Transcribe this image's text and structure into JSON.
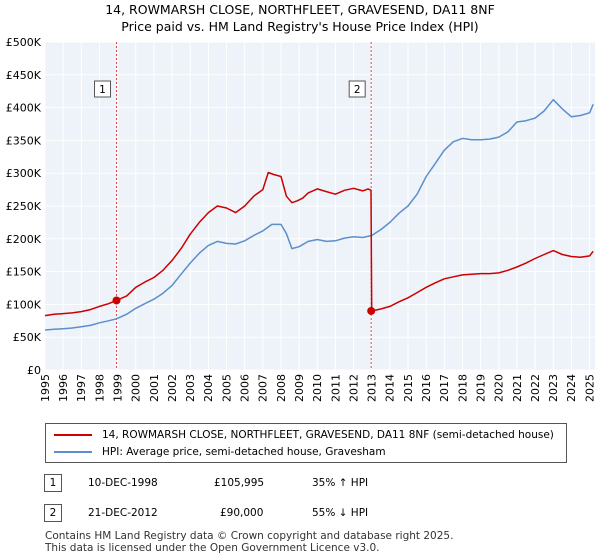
{
  "title": "14, ROWMARSH CLOSE, NORTHFLEET, GRAVESEND, DA11 8NF",
  "subtitle": "Price paid vs. HM Land Registry's House Price Index (HPI)",
  "chart_data": {
    "type": "line",
    "title": "14, ROWMARSH CLOSE, NORTHFLEET, GRAVESEND, DA11 8NF",
    "subtitle": "Price paid vs. HM Land Registry's House Price Index (HPI)",
    "xlabel": "",
    "ylabel": "",
    "xlim": [
      1995,
      2025.3
    ],
    "ylim": [
      0,
      500000
    ],
    "grid": true,
    "x_ticks": [
      1995,
      1996,
      1997,
      1998,
      1999,
      2000,
      2001,
      2002,
      2003,
      2004,
      2005,
      2006,
      2007,
      2008,
      2009,
      2010,
      2011,
      2012,
      2013,
      2014,
      2015,
      2016,
      2017,
      2018,
      2019,
      2020,
      2021,
      2022,
      2023,
      2024,
      2025
    ],
    "x_tick_labels": [
      "1995",
      "1996",
      "1997",
      "1998",
      "1999",
      "2000",
      "2001",
      "2002",
      "2003",
      "2004",
      "2005",
      "2006",
      "2007",
      "2008",
      "2009",
      "2010",
      "2011",
      "2012",
      "2013",
      "2014",
      "2015",
      "2016",
      "2017",
      "2018",
      "2019",
      "2020",
      "2021",
      "2022",
      "2023",
      "2024",
      "2025"
    ],
    "y_ticks": [
      0,
      50000,
      100000,
      150000,
      200000,
      250000,
      300000,
      350000,
      400000,
      450000,
      500000
    ],
    "y_tick_labels": [
      "£0",
      "£50K",
      "£100K",
      "£150K",
      "£200K",
      "£250K",
      "£300K",
      "£350K",
      "£400K",
      "£450K",
      "£500K"
    ],
    "series": [
      {
        "name": "14, ROWMARSH CLOSE, NORTHFLEET, GRAVESEND, DA11 8NF (semi-detached house)",
        "color": "#cc0000",
        "x": [
          1995.0,
          1995.5,
          1996.0,
          1996.5,
          1997.0,
          1997.5,
          1998.0,
          1998.5,
          1998.94,
          1999.5,
          2000.0,
          2000.5,
          2001.0,
          2001.5,
          2002.0,
          2002.5,
          2003.0,
          2003.5,
          2004.0,
          2004.5,
          2005.0,
          2005.5,
          2006.0,
          2006.5,
          2007.0,
          2007.3,
          2007.6,
          2008.0,
          2008.3,
          2008.6,
          2008.9,
          2009.2,
          2009.5,
          2010.0,
          2010.5,
          2011.0,
          2011.5,
          2012.0,
          2012.5,
          2012.8,
          2012.96,
          2013.0,
          2013.5,
          2014.0,
          2014.5,
          2015.0,
          2015.5,
          2016.0,
          2016.5,
          2017.0,
          2017.5,
          2018.0,
          2018.5,
          2019.0,
          2019.5,
          2020.0,
          2020.5,
          2021.0,
          2021.5,
          2022.0,
          2022.5,
          2023.0,
          2023.5,
          2024.0,
          2024.5,
          2025.0,
          2025.2
        ],
        "values": [
          83000,
          85000,
          86000,
          87000,
          89000,
          92000,
          97000,
          101000,
          105995,
          113000,
          126000,
          134000,
          141000,
          152000,
          167000,
          185000,
          207000,
          225000,
          240000,
          250000,
          247000,
          240000,
          250000,
          265000,
          275000,
          301000,
          298000,
          295000,
          265000,
          255000,
          258000,
          262000,
          270000,
          276000,
          272000,
          268000,
          274000,
          277000,
          273000,
          276000,
          274000,
          90000,
          93000,
          97000,
          104000,
          110000,
          118000,
          126000,
          133000,
          139000,
          142000,
          145000,
          146000,
          147000,
          147000,
          148000,
          152000,
          157000,
          163000,
          170000,
          176000,
          182000,
          176000,
          173000,
          172000,
          174000,
          181000
        ]
      },
      {
        "name": "HPI: Average price, semi-detached house, Gravesham",
        "color": "#5b8fcc",
        "x": [
          1995.0,
          1995.5,
          1996.0,
          1996.5,
          1997.0,
          1997.5,
          1998.0,
          1998.5,
          1998.94,
          1999.5,
          2000.0,
          2000.5,
          2001.0,
          2001.5,
          2002.0,
          2002.5,
          2003.0,
          2003.5,
          2004.0,
          2004.5,
          2005.0,
          2005.5,
          2006.0,
          2006.5,
          2007.0,
          2007.5,
          2008.0,
          2008.3,
          2008.6,
          2009.0,
          2009.5,
          2010.0,
          2010.5,
          2011.0,
          2011.5,
          2012.0,
          2012.5,
          2013.0,
          2013.5,
          2014.0,
          2014.5,
          2015.0,
          2015.5,
          2016.0,
          2016.5,
          2017.0,
          2017.5,
          2018.0,
          2018.5,
          2019.0,
          2019.5,
          2020.0,
          2020.5,
          2021.0,
          2021.5,
          2022.0,
          2022.5,
          2023.0,
          2023.5,
          2024.0,
          2024.5,
          2025.0,
          2025.2
        ],
        "values": [
          61000,
          62000,
          63000,
          64000,
          66000,
          68000,
          72000,
          75000,
          78000,
          85000,
          94000,
          101000,
          108000,
          117000,
          129000,
          146000,
          163000,
          178000,
          190000,
          196000,
          193000,
          192000,
          197000,
          205000,
          212000,
          222000,
          222000,
          208000,
          185000,
          188000,
          196000,
          199000,
          196000,
          197000,
          201000,
          203000,
          202000,
          205000,
          214000,
          225000,
          239000,
          250000,
          268000,
          295000,
          315000,
          335000,
          348000,
          353000,
          351000,
          351000,
          352000,
          355000,
          363000,
          378000,
          380000,
          384000,
          395000,
          412000,
          398000,
          386000,
          388000,
          392000,
          405000
        ]
      }
    ],
    "annotations": [
      {
        "label": "1",
        "x": 1998.94,
        "y": 105995
      },
      {
        "label": "2",
        "x": 2012.97,
        "y": 90000
      }
    ]
  },
  "legend": {
    "items": [
      {
        "label": "14, ROWMARSH CLOSE, NORTHFLEET, GRAVESEND, DA11 8NF (semi-detached house)",
        "color": "#cc0000"
      },
      {
        "label": "HPI: Average price, semi-detached house, Gravesham",
        "color": "#5b8fcc"
      }
    ]
  },
  "transactions": [
    {
      "badge": "1",
      "date": "10-DEC-1998",
      "price": "£105,995",
      "hpi": "35% ↑ HPI"
    },
    {
      "badge": "2",
      "date": "21-DEC-2012",
      "price": "£90,000",
      "hpi": "55% ↓ HPI"
    }
  ],
  "footer": {
    "line1": "Contains HM Land Registry data © Crown copyright and database right 2025.",
    "line2": "This data is licensed under the Open Government Licence v3.0."
  },
  "colors": {
    "red": "#cc0000",
    "blue": "#5b8fcc",
    "plot_bg": "#eef2f9",
    "grid": "#ffffff",
    "vline": "#cc0000"
  }
}
